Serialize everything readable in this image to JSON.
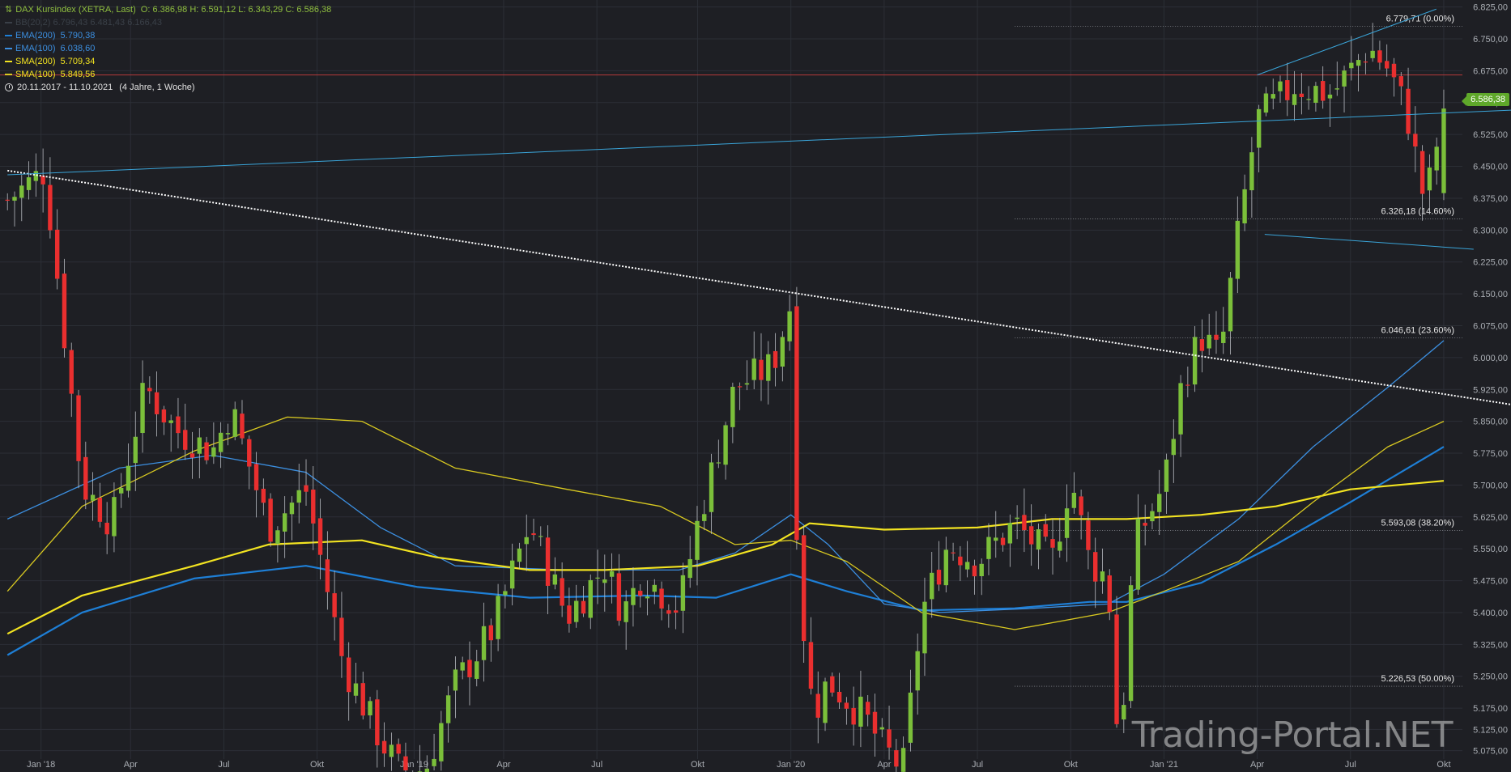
{
  "header": {
    "symbol_icon": "candlestick-icon",
    "title": "DAX Kursindex (XETRA, Last)",
    "ohlc": "O: 6.386,98   H: 6.591,12   L: 6.343,29   C: 6.586,38",
    "faded_line": "BB(20,2) 6.796,43 6.481,43 6.166,43"
  },
  "legend": [
    {
      "label": "EMA(200)",
      "value": "5.790,38",
      "color": "#1e7fd6"
    },
    {
      "label": "EMA(100)",
      "value": "6.038,60",
      "color": "#3c8fe0"
    },
    {
      "label": "SMA(200)",
      "value": "5.709,34",
      "color": "#f2e321"
    },
    {
      "label": "SMA(100)",
      "value": "5.849,56",
      "color": "#d9c921"
    }
  ],
  "date_range": "20.11.2017 - 11.10.2021",
  "date_range_note": "(4 Jahre, 1 Woche)",
  "last_price_label": "6.586,38",
  "watermark": "Trading-Portal.NET",
  "colors": {
    "background": "#1e1f24",
    "grid": "#2c2f36",
    "up": "#7bbf3a",
    "down": "#ea2f2f",
    "trendline": "#3aa4d8",
    "resistance": "#b63a3a",
    "downtrend": "#ffffff"
  },
  "chart_data": {
    "type": "candlestick",
    "title": "DAX Kursindex (XETRA, Last)",
    "interval": "weekly",
    "ylim": [
      5040,
      6830
    ],
    "y_ticks": [
      "6.825,00",
      "6.750,00",
      "6.675,00",
      "6.600,00",
      "6.525,00",
      "6.450,00",
      "6.375,00",
      "6.300,00",
      "6.225,00",
      "6.150,00",
      "6.075,00",
      "6.000,00",
      "5.925,00",
      "5.850,00",
      "5.775,00",
      "5.700,00",
      "5.625,00",
      "5.550,00",
      "5.475,00",
      "5.400,00",
      "5.325,00",
      "5.250,00",
      "5.175,00",
      "5.125,00",
      "5.075,00"
    ],
    "x_ticks": [
      {
        "label": "Jan '18",
        "t": 0.09
      },
      {
        "label": "Apr",
        "t": 0.33
      },
      {
        "label": "Jul",
        "t": 0.58
      },
      {
        "label": "Okt",
        "t": 0.83
      },
      {
        "label": "Jan '19",
        "t": 1.09
      },
      {
        "label": "Apr",
        "t": 1.33
      },
      {
        "label": "Jul",
        "t": 1.58
      },
      {
        "label": "Okt",
        "t": 1.85
      },
      {
        "label": "Jan '20",
        "t": 2.1
      },
      {
        "label": "Apr",
        "t": 2.35
      },
      {
        "label": "Jul",
        "t": 2.6
      },
      {
        "label": "Okt",
        "t": 2.85
      },
      {
        "label": "Jan '21",
        "t": 3.1
      },
      {
        "label": "Apr",
        "t": 3.35
      },
      {
        "label": "Jul",
        "t": 3.6
      },
      {
        "label": "Okt",
        "t": 3.85
      }
    ],
    "fib_levels": [
      {
        "price": 6779.71,
        "label": "6.779,71 (0.00%)"
      },
      {
        "price": 6326.18,
        "label": "6.326,18 (14.60%)"
      },
      {
        "price": 6046.61,
        "label": "6.046,61 (23.60%)"
      },
      {
        "price": 5593.08,
        "label": "5.593,08 (38.20%)"
      },
      {
        "price": 5226.53,
        "label": "5.226,53 (50.00%)"
      }
    ],
    "horizontal_line": 6665,
    "anchors": [
      [
        0.0,
        6370
      ],
      [
        0.1,
        6440
      ],
      [
        0.2,
        5700
      ],
      [
        0.28,
        5610
      ],
      [
        0.37,
        5930
      ],
      [
        0.45,
        5830
      ],
      [
        0.55,
        5780
      ],
      [
        0.6,
        5880
      ],
      [
        0.7,
        5600
      ],
      [
        0.8,
        5690
      ],
      [
        0.9,
        5280
      ],
      [
        1.0,
        5100
      ],
      [
        1.05,
        5030
      ],
      [
        1.12,
        5030
      ],
      [
        1.2,
        5230
      ],
      [
        1.3,
        5360
      ],
      [
        1.4,
        5610
      ],
      [
        1.5,
        5390
      ],
      [
        1.6,
        5510
      ],
      [
        1.65,
        5400
      ],
      [
        1.7,
        5490
      ],
      [
        1.8,
        5410
      ],
      [
        1.85,
        5610
      ],
      [
        1.95,
        5930
      ],
      [
        2.05,
        5980
      ],
      [
        2.1,
        6130
      ],
      [
        2.12,
        5470
      ],
      [
        2.16,
        5160
      ],
      [
        2.2,
        5240
      ],
      [
        2.3,
        5150
      ],
      [
        2.35,
        5080
      ],
      [
        2.4,
        5030
      ],
      [
        2.45,
        5400
      ],
      [
        2.52,
        5560
      ],
      [
        2.6,
        5520
      ],
      [
        2.7,
        5610
      ],
      [
        2.8,
        5520
      ],
      [
        2.85,
        5720
      ],
      [
        2.9,
        5520
      ],
      [
        2.95,
        5480
      ],
      [
        2.98,
        5050
      ],
      [
        3.02,
        5560
      ],
      [
        3.1,
        5700
      ],
      [
        3.15,
        5950
      ],
      [
        3.2,
        6050
      ],
      [
        3.25,
        6000
      ],
      [
        3.3,
        6300
      ],
      [
        3.35,
        6560
      ],
      [
        3.45,
        6640
      ],
      [
        3.55,
        6620
      ],
      [
        3.65,
        6730
      ],
      [
        3.7,
        6680
      ],
      [
        3.75,
        6580
      ],
      [
        3.8,
        6360
      ],
      [
        3.85,
        6586
      ]
    ],
    "series": [
      {
        "name": "EMA(200)",
        "color": "#1e7fd6",
        "width": 2.2,
        "points": [
          [
            0,
            5300
          ],
          [
            0.2,
            5400
          ],
          [
            0.5,
            5480
          ],
          [
            0.8,
            5510
          ],
          [
            1.1,
            5460
          ],
          [
            1.4,
            5435
          ],
          [
            1.7,
            5440
          ],
          [
            1.9,
            5435
          ],
          [
            2.1,
            5490
          ],
          [
            2.25,
            5450
          ],
          [
            2.45,
            5405
          ],
          [
            2.7,
            5410
          ],
          [
            2.9,
            5425
          ],
          [
            3.0,
            5425
          ],
          [
            3.2,
            5470
          ],
          [
            3.4,
            5560
          ],
          [
            3.6,
            5660
          ],
          [
            3.85,
            5790
          ]
        ]
      },
      {
        "name": "EMA(100)",
        "color": "#3c8fe0",
        "width": 1.3,
        "points": [
          [
            0,
            5620
          ],
          [
            0.3,
            5740
          ],
          [
            0.55,
            5770
          ],
          [
            0.8,
            5730
          ],
          [
            1.0,
            5600
          ],
          [
            1.2,
            5510
          ],
          [
            1.5,
            5500
          ],
          [
            1.8,
            5500
          ],
          [
            1.95,
            5540
          ],
          [
            2.1,
            5630
          ],
          [
            2.2,
            5560
          ],
          [
            2.35,
            5420
          ],
          [
            2.5,
            5400
          ],
          [
            2.75,
            5410
          ],
          [
            2.95,
            5420
          ],
          [
            3.1,
            5490
          ],
          [
            3.3,
            5620
          ],
          [
            3.5,
            5790
          ],
          [
            3.7,
            5930
          ],
          [
            3.85,
            6040
          ]
        ]
      },
      {
        "name": "SMA(200)",
        "color": "#f2e321",
        "width": 2.2,
        "points": [
          [
            0,
            5350
          ],
          [
            0.2,
            5440
          ],
          [
            0.5,
            5510
          ],
          [
            0.7,
            5560
          ],
          [
            0.95,
            5570
          ],
          [
            1.15,
            5530
          ],
          [
            1.4,
            5500
          ],
          [
            1.6,
            5500
          ],
          [
            1.85,
            5510
          ],
          [
            2.05,
            5560
          ],
          [
            2.15,
            5610
          ],
          [
            2.35,
            5595
          ],
          [
            2.6,
            5600
          ],
          [
            2.8,
            5620
          ],
          [
            3.0,
            5620
          ],
          [
            3.2,
            5630
          ],
          [
            3.4,
            5650
          ],
          [
            3.6,
            5690
          ],
          [
            3.85,
            5710
          ]
        ]
      },
      {
        "name": "SMA(100)",
        "color": "#d9c921",
        "width": 1.3,
        "points": [
          [
            0,
            5450
          ],
          [
            0.2,
            5650
          ],
          [
            0.5,
            5780
          ],
          [
            0.75,
            5860
          ],
          [
            0.95,
            5850
          ],
          [
            1.2,
            5740
          ],
          [
            1.5,
            5690
          ],
          [
            1.75,
            5650
          ],
          [
            1.95,
            5560
          ],
          [
            2.1,
            5570
          ],
          [
            2.25,
            5520
          ],
          [
            2.45,
            5400
          ],
          [
            2.7,
            5360
          ],
          [
            2.95,
            5400
          ],
          [
            3.1,
            5450
          ],
          [
            3.3,
            5520
          ],
          [
            3.5,
            5660
          ],
          [
            3.7,
            5790
          ],
          [
            3.85,
            5850
          ]
        ]
      }
    ],
    "trendlines": [
      {
        "kind": "downtrend",
        "style": "dotted",
        "from": [
          0.0,
          6440
        ],
        "to": [
          4.1,
          5880
        ]
      },
      {
        "kind": "uptrend",
        "style": "solid",
        "from": [
          0.0,
          6430
        ],
        "to": [
          4.5,
          6600
        ]
      },
      {
        "kind": "channel-upper",
        "style": "solid",
        "from": [
          3.35,
          6665
        ],
        "to": [
          3.83,
          6820
        ]
      },
      {
        "kind": "channel-lower",
        "style": "solid",
        "from": [
          3.37,
          6290
        ],
        "to": [
          3.93,
          6255
        ]
      }
    ]
  }
}
